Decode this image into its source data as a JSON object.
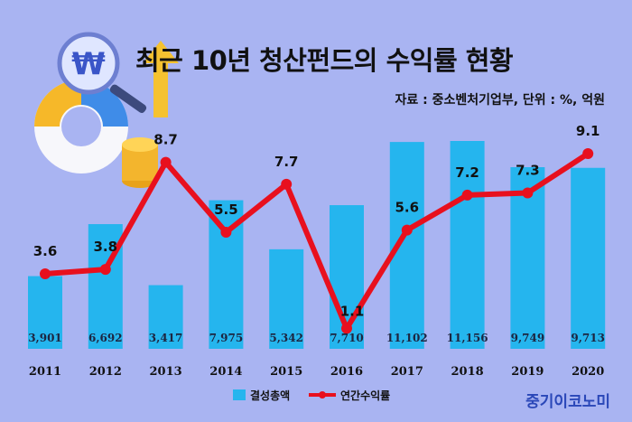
{
  "title": "최근 10년 청산펀드의 수익률 현황",
  "source": "자료 : 중소벤처기업부, 단위 : %, 억원",
  "brand": "중기이코노미",
  "colors": {
    "background": "#a9b4f2",
    "bar": "#25b5ee",
    "line": "#e8101e"
  },
  "chart_data": {
    "type": "bar",
    "categories": [
      "2011",
      "2012",
      "2013",
      "2014",
      "2015",
      "2016",
      "2017",
      "2018",
      "2019",
      "2020"
    ],
    "series": [
      {
        "name": "결성총액",
        "type": "bar",
        "values": [
          3901,
          6692,
          3417,
          7975,
          5342,
          7710,
          11102,
          11156,
          9749,
          9713
        ],
        "labels": [
          "3,901",
          "6,692",
          "3,417",
          "7,975",
          "5,342",
          "7,710",
          "11,102",
          "11,156",
          "9,749",
          "9,713"
        ]
      },
      {
        "name": "연간수익률",
        "type": "line",
        "values": [
          3.6,
          3.8,
          8.7,
          5.5,
          7.7,
          1.1,
          5.6,
          7.2,
          7.3,
          9.1
        ],
        "labels": [
          "3.6",
          "3.8",
          "8.7",
          "5.5",
          "7.7",
          "1.1",
          "5.6",
          "7.2",
          "7.3",
          "9.1"
        ]
      }
    ],
    "legend": {
      "position": "bottom",
      "items": [
        "결성총액",
        "연간수익률"
      ]
    },
    "grid": false
  }
}
